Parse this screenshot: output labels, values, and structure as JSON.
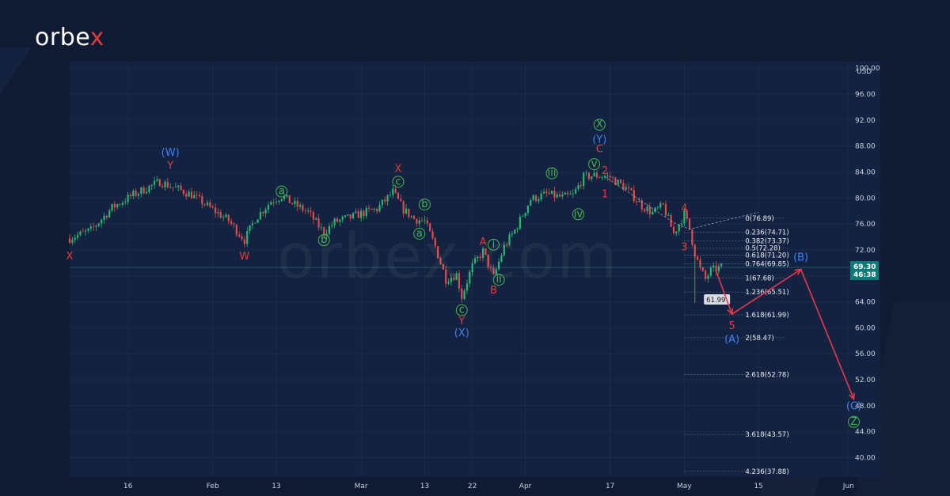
{
  "brand": {
    "prefix": "orbe",
    "accent": "x"
  },
  "watermark_text": "orbex.com",
  "colors": {
    "background": "#0f1b33",
    "plot_background": "#132240",
    "candle_up": "#2bb673",
    "candle_down": "#e04b4b",
    "wave_red": "#e33b3b",
    "wave_blue": "#3b82f6",
    "wave_green": "#3fb950",
    "projection": "#e8384f",
    "price_badge": "#0d7a7a"
  },
  "chart_data": {
    "type": "candlestick",
    "title": "",
    "unit_label": "USD",
    "y_range": [
      37,
      101
    ],
    "y_ticks": [
      "100.00",
      "96.00",
      "92.00",
      "88.00",
      "84.00",
      "80.00",
      "76.00",
      "72.00",
      "68.00",
      "64.00",
      "60.00",
      "56.00",
      "52.00",
      "48.00",
      "44.00",
      "40.00"
    ],
    "x_ticks": [
      {
        "label": "16",
        "date": "2023-01-16"
      },
      {
        "label": "Feb",
        "date": "2023-02-01"
      },
      {
        "label": "13",
        "date": "2023-02-13"
      },
      {
        "label": "Mar",
        "date": "2023-03-01"
      },
      {
        "label": "13",
        "date": "2023-03-13"
      },
      {
        "label": "22",
        "date": "2023-03-22"
      },
      {
        "label": "Apr",
        "date": "2023-04-01"
      },
      {
        "label": "17",
        "date": "2023-04-17"
      },
      {
        "label": "May",
        "date": "2023-05-01"
      },
      {
        "label": "15",
        "date": "2023-05-15"
      },
      {
        "label": "Jun",
        "date": "2023-06-01"
      }
    ],
    "x_range": [
      "2023-01-05",
      "2023-06-07"
    ],
    "price_path": [
      [
        "2023-01-05",
        73.8
      ],
      [
        "2023-01-09",
        75.0
      ],
      [
        "2023-01-13",
        78.5
      ],
      [
        "2023-01-17",
        80.5
      ],
      [
        "2023-01-22",
        82.5
      ],
      [
        "2023-01-25",
        81.5
      ],
      [
        "2023-01-28",
        80.5
      ],
      [
        "2023-02-01",
        78.2
      ],
      [
        "2023-02-04",
        76.5
      ],
      [
        "2023-02-07",
        73.5
      ],
      [
        "2023-02-09",
        76.8
      ],
      [
        "2023-02-12",
        79.5
      ],
      [
        "2023-02-14",
        80.3
      ],
      [
        "2023-02-16",
        79.2
      ],
      [
        "2023-02-19",
        77.8
      ],
      [
        "2023-02-22",
        74.6
      ],
      [
        "2023-02-24",
        76.3
      ],
      [
        "2023-02-27",
        77.0
      ],
      [
        "2023-03-01",
        77.6
      ],
      [
        "2023-03-04",
        78.3
      ],
      [
        "2023-03-07",
        80.9
      ],
      [
        "2023-03-09",
        78.2
      ],
      [
        "2023-03-11",
        76.8
      ],
      [
        "2023-03-13",
        76.4
      ],
      [
        "2023-03-15",
        72.5
      ],
      [
        "2023-03-17",
        67.5
      ],
      [
        "2023-03-19",
        68.2
      ],
      [
        "2023-03-20",
        64.8
      ],
      [
        "2023-03-22",
        69.5
      ],
      [
        "2023-03-24",
        71.8
      ],
      [
        "2023-03-26",
        67.8
      ],
      [
        "2023-03-28",
        72.5
      ],
      [
        "2023-03-30",
        75.0
      ],
      [
        "2023-04-02",
        79.8
      ],
      [
        "2023-04-05",
        80.6
      ],
      [
        "2023-04-08",
        80.1
      ],
      [
        "2023-04-10",
        80.4
      ],
      [
        "2023-04-12",
        83.2
      ],
      [
        "2023-04-14",
        83.5
      ],
      [
        "2023-04-17",
        83.2
      ],
      [
        "2023-04-20",
        81.5
      ],
      [
        "2023-04-23",
        78.8
      ],
      [
        "2023-04-25",
        77.7
      ],
      [
        "2023-04-27",
        78.8
      ],
      [
        "2023-04-29",
        74.5
      ],
      [
        "2023-05-01",
        77.5
      ],
      [
        "2023-05-02",
        75.2
      ],
      [
        "2023-05-03",
        71.5
      ],
      [
        "2023-05-04",
        69.0
      ],
      [
        "2023-05-05",
        67.5
      ],
      [
        "2023-05-06",
        68.8
      ],
      [
        "2023-05-08",
        69.3
      ]
    ],
    "fib_levels": [
      {
        "label": "0(76.89)",
        "value": 76.89
      },
      {
        "label": "0.236(74.71)",
        "value": 74.71
      },
      {
        "label": "0.382(73.37)",
        "value": 73.37
      },
      {
        "label": "0.5(72.28)",
        "value": 72.28
      },
      {
        "label": "0.618(71.20)",
        "value": 71.2
      },
      {
        "label": "0.764(69.85)",
        "value": 69.85
      },
      {
        "label": "1(67.68)",
        "value": 67.68
      },
      {
        "label": "1.236(65.51)",
        "value": 65.51
      },
      {
        "label": "1.618(61.99)",
        "value": 61.99
      },
      {
        "label": "2(58.47)",
        "value": 58.47
      },
      {
        "label": "2.618(52.78)",
        "value": 52.78
      },
      {
        "label": "3.618(43.57)",
        "value": 43.57
      },
      {
        "label": "4.236(37.88)",
        "value": 37.88
      }
    ],
    "hover_label": "61.99",
    "current_price": {
      "value": 69.3,
      "label": "69.30",
      "countdown": "46:38"
    },
    "wave_labels": [
      {
        "text": "X",
        "date": "2023-01-05",
        "price": 71.0,
        "color": "red",
        "circle": false
      },
      {
        "text": "(W)",
        "date": "2023-01-24",
        "price": 87.0,
        "color": "blue",
        "circle": false
      },
      {
        "text": "Y",
        "date": "2023-01-24",
        "price": 85.0,
        "color": "red",
        "circle": false
      },
      {
        "text": "W",
        "date": "2023-02-07",
        "price": 71.0,
        "color": "red",
        "circle": false
      },
      {
        "text": "a",
        "date": "2023-02-14",
        "price": 81.0,
        "color": "green",
        "circle": true
      },
      {
        "text": "b",
        "date": "2023-02-22",
        "price": 73.5,
        "color": "green",
        "circle": true
      },
      {
        "text": "X",
        "date": "2023-03-08",
        "price": 84.5,
        "color": "red",
        "circle": false
      },
      {
        "text": "c",
        "date": "2023-03-08",
        "price": 82.5,
        "color": "green",
        "circle": true
      },
      {
        "text": "b",
        "date": "2023-03-13",
        "price": 79.0,
        "color": "green",
        "circle": true
      },
      {
        "text": "a",
        "date": "2023-03-12",
        "price": 74.5,
        "color": "green",
        "circle": true
      },
      {
        "text": "c",
        "date": "2023-03-20",
        "price": 62.7,
        "color": "green",
        "circle": true
      },
      {
        "text": "Y",
        "date": "2023-03-20",
        "price": 61.0,
        "color": "red",
        "circle": false
      },
      {
        "text": "(X)",
        "date": "2023-03-20",
        "price": 59.2,
        "color": "blue",
        "circle": false
      },
      {
        "text": "A",
        "date": "2023-03-24",
        "price": 73.2,
        "color": "red",
        "circle": false
      },
      {
        "text": "i",
        "date": "2023-03-26",
        "price": 72.8,
        "color": "green",
        "circle": true
      },
      {
        "text": "ii",
        "date": "2023-03-27",
        "price": 67.4,
        "color": "green",
        "circle": true
      },
      {
        "text": "B",
        "date": "2023-03-26",
        "price": 65.8,
        "color": "red",
        "circle": false
      },
      {
        "text": "iii",
        "date": "2023-04-06",
        "price": 83.8,
        "color": "green",
        "circle": true
      },
      {
        "text": "iv",
        "date": "2023-04-11",
        "price": 77.5,
        "color": "green",
        "circle": true
      },
      {
        "text": "v",
        "date": "2023-04-14",
        "price": 85.2,
        "color": "green",
        "circle": true
      },
      {
        "text": "X",
        "date": "2023-04-15",
        "price": 91.3,
        "color": "green",
        "circle": true
      },
      {
        "text": "(Y)",
        "date": "2023-04-15",
        "price": 89.0,
        "color": "blue",
        "circle": false
      },
      {
        "text": "C",
        "date": "2023-04-15",
        "price": 87.5,
        "color": "red",
        "circle": false
      },
      {
        "text": "2",
        "date": "2023-04-16",
        "price": 84.2,
        "color": "red",
        "circle": false
      },
      {
        "text": "1",
        "date": "2023-04-16",
        "price": 80.6,
        "color": "red",
        "circle": false
      },
      {
        "text": "4",
        "date": "2023-05-01",
        "price": 78.4,
        "color": "red",
        "circle": false
      },
      {
        "text": "3",
        "date": "2023-05-01",
        "price": 72.4,
        "color": "red",
        "circle": false
      },
      {
        "text": "5",
        "date": "2023-05-10",
        "price": 60.3,
        "color": "red",
        "circle": false
      },
      {
        "text": "(A)",
        "date": "2023-05-10",
        "price": 58.2,
        "color": "blue",
        "circle": false
      },
      {
        "text": "(B)",
        "date": "2023-05-23",
        "price": 70.8,
        "color": "blue",
        "circle": false
      },
      {
        "text": "(C)",
        "date": "2023-06-02",
        "price": 47.9,
        "color": "blue",
        "circle": false
      },
      {
        "text": "Z",
        "date": "2023-06-02",
        "price": 45.5,
        "color": "green",
        "circle": true
      }
    ],
    "projection_path": [
      [
        "2023-05-07",
        68.8
      ],
      [
        "2023-05-10",
        62.1
      ],
      [
        "2023-05-23",
        69.0
      ],
      [
        "2023-06-02",
        49.0
      ]
    ],
    "dashed_trend": [
      [
        "2023-04-16",
        83.3
      ],
      [
        "2023-04-29",
        76.2
      ],
      [
        "2023-05-02",
        75.2
      ],
      [
        "2023-05-15",
        77.8
      ]
    ]
  }
}
